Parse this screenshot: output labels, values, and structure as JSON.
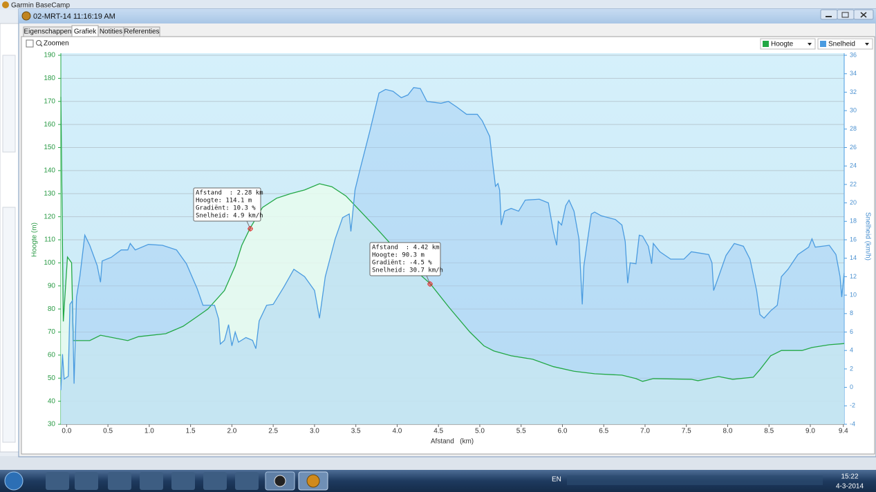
{
  "background_app": {
    "title": "Garmin BaseCamp"
  },
  "window": {
    "title": "02-MRT-14 11:16:19 AM",
    "tabs": [
      "Eigenschappen",
      "Grafiek",
      "Notities",
      "Referenties"
    ],
    "zoom_label": "Zoomen"
  },
  "chart_data": {
    "type": "line",
    "xlabel": "Afstand   (km)",
    "ylabel": "Hoogte (m)",
    "y2label": "Snelheid (km/h)",
    "xlim": [
      -0.07,
      9.41
    ],
    "ylim": [
      30,
      190
    ],
    "y2lim": [
      -4,
      36
    ],
    "grid": true,
    "xticks": [
      {
        "value": 0,
        "label": "0.0"
      },
      0.5,
      {
        "value": 1,
        "label": "1.0"
      },
      1.5,
      {
        "value": 2,
        "label": "2.0"
      },
      2.5,
      {
        "value": 3,
        "label": "3.0"
      },
      3.5,
      {
        "value": 4,
        "label": "4.0"
      },
      4.5,
      {
        "value": 5,
        "label": "5.0"
      },
      5.5,
      {
        "value": 6,
        "label": "6.0"
      },
      6.5,
      {
        "value": 7,
        "label": "7.0"
      },
      7.5,
      {
        "value": 8,
        "label": "8.0"
      },
      8.5,
      {
        "value": 9,
        "label": "9.0"
      },
      9.4
    ],
    "yticks": [
      30,
      40,
      50,
      60,
      70,
      80,
      90,
      100,
      110,
      120,
      130,
      140,
      150,
      160,
      170,
      180,
      190
    ],
    "y2ticks": [
      -4,
      -2,
      0,
      2,
      4,
      6,
      8,
      10,
      12,
      14,
      16,
      18,
      20,
      22,
      24,
      26,
      28,
      30,
      32,
      34,
      36
    ],
    "series": [
      {
        "name": "Hoogte",
        "color": "#22a845",
        "x": [
          -0.07,
          -0.04,
          0.01,
          0.06,
          0.08,
          0.28,
          0.41,
          0.74,
          0.87,
          1.2,
          1.41,
          1.58,
          1.71,
          1.91,
          2.04,
          2.12,
          2.22,
          2.37,
          2.54,
          2.71,
          2.88,
          3.06,
          3.21,
          3.38,
          3.55,
          3.75,
          3.96,
          4.21,
          4.4,
          4.63,
          4.88,
          5.05,
          5.17,
          5.38,
          5.64,
          5.89,
          6.14,
          6.39,
          6.72,
          6.89,
          6.97,
          7.1,
          7.56,
          7.64,
          7.89,
          8.06,
          8.31,
          8.39,
          8.52,
          8.65,
          8.9,
          9.02,
          9.23,
          9.41
        ],
        "values": [
          172,
          74.6,
          102.5,
          100,
          66.3,
          66.3,
          68.6,
          66.3,
          68,
          69.3,
          72.5,
          76.7,
          80,
          88,
          98.6,
          107.6,
          115,
          124,
          128,
          130,
          131.6,
          134.3,
          133,
          129,
          122.6,
          115,
          106.7,
          97,
          91,
          80.6,
          70,
          64,
          61.8,
          59.7,
          58.2,
          55,
          53,
          51.9,
          51.3,
          49.8,
          48.6,
          49.8,
          49.5,
          48.9,
          50.7,
          49.5,
          50.4,
          53.7,
          59.7,
          62,
          62,
          63.3,
          64.5,
          65
        ]
      },
      {
        "name": "Snelheid",
        "color": "#4a9be0",
        "axis": "y2",
        "x": [
          -0.07,
          -0.05,
          -0.03,
          0.02,
          0.04,
          0.07,
          0.09,
          0.12,
          0.16,
          0.22,
          0.28,
          0.37,
          0.41,
          0.43,
          0.54,
          0.66,
          0.74,
          0.77,
          0.83,
          0.99,
          1.16,
          1.33,
          1.45,
          1.58,
          1.65,
          1.79,
          1.84,
          1.86,
          1.91,
          1.96,
          2.0,
          2.04,
          2.08,
          2.17,
          2.25,
          2.29,
          2.33,
          2.42,
          2.5,
          2.63,
          2.75,
          2.88,
          3.0,
          3.06,
          3.13,
          3.25,
          3.34,
          3.42,
          3.44,
          3.49,
          3.55,
          3.67,
          3.78,
          3.86,
          3.95,
          4.05,
          4.13,
          4.2,
          4.28,
          4.36,
          4.53,
          4.62,
          4.72,
          4.84,
          4.97,
          5.03,
          5.12,
          5.16,
          5.19,
          5.22,
          5.24,
          5.26,
          5.3,
          5.38,
          5.47,
          5.55,
          5.72,
          5.83,
          5.89,
          5.93,
          5.95,
          5.99,
          6.04,
          6.08,
          6.14,
          6.2,
          6.24,
          6.26,
          6.35,
          6.39,
          6.47,
          6.64,
          6.72,
          6.76,
          6.79,
          6.82,
          6.89,
          6.93,
          6.97,
          7.04,
          7.08,
          7.1,
          7.18,
          7.31,
          7.47,
          7.56,
          7.77,
          7.81,
          7.83,
          7.89,
          7.98,
          8.08,
          8.19,
          8.27,
          8.35,
          8.39,
          8.44,
          8.52,
          8.6,
          8.65,
          8.73,
          8.85,
          8.98,
          9.02,
          9.06,
          9.23,
          9.31,
          9.36,
          9.38,
          9.41
        ],
        "values": [
          -0.3,
          3.6,
          0.9,
          1.2,
          9.0,
          9.4,
          0.4,
          9.8,
          12.0,
          16.5,
          15.4,
          13.2,
          11.4,
          13.7,
          14.1,
          14.9,
          14.9,
          15.6,
          14.9,
          15.5,
          15.4,
          14.9,
          13.4,
          10.7,
          8.9,
          8.9,
          7.4,
          4.7,
          5.1,
          6.8,
          4.5,
          6.0,
          4.9,
          5.4,
          5.1,
          4.2,
          7.2,
          8.9,
          9.0,
          10.9,
          12.8,
          12.0,
          10.5,
          7.5,
          12.0,
          16.1,
          18.4,
          18.8,
          16.9,
          21.4,
          23.6,
          27.8,
          31.9,
          32.3,
          32.1,
          31.4,
          31.7,
          32.5,
          32.4,
          31.0,
          30.8,
          31.0,
          30.4,
          29.6,
          29.6,
          28.9,
          27.2,
          24.0,
          21.8,
          22.1,
          21.4,
          17.6,
          19.1,
          19.4,
          19.1,
          20.3,
          20.4,
          20.0,
          16.9,
          15.4,
          18.0,
          17.6,
          19.7,
          20.3,
          19.1,
          16.1,
          9.0,
          13.2,
          18.8,
          19.0,
          18.6,
          18.2,
          17.6,
          15.8,
          11.3,
          13.5,
          13.4,
          16.5,
          16.4,
          15.3,
          13.4,
          15.6,
          14.7,
          13.9,
          13.9,
          14.7,
          14.4,
          13.5,
          10.5,
          12.0,
          14.3,
          15.6,
          15.3,
          13.9,
          10.5,
          7.9,
          7.5,
          8.3,
          8.9,
          12.0,
          12.8,
          14.4,
          15.2,
          16.1,
          15.2,
          15.4,
          14.4,
          12.0,
          9.8,
          12.4
        ]
      }
    ],
    "annotations": [
      {
        "lines": [
          "Afstand  : 2.28 km",
          "Hoogte: 114.1 m",
          "Gradiënt: 10.3 %",
          "Snelheid: 4.9 km/h"
        ]
      },
      {
        "lines": [
          "Afstand  : 4.42 km",
          "Hoogte: 90.3 m",
          "Gradiënt: -4.5 %",
          "Snelheid: 30.7 km/h"
        ]
      }
    ]
  },
  "taskbar": {
    "language": "EN",
    "time": "15:22",
    "date": "4-3-2014"
  }
}
